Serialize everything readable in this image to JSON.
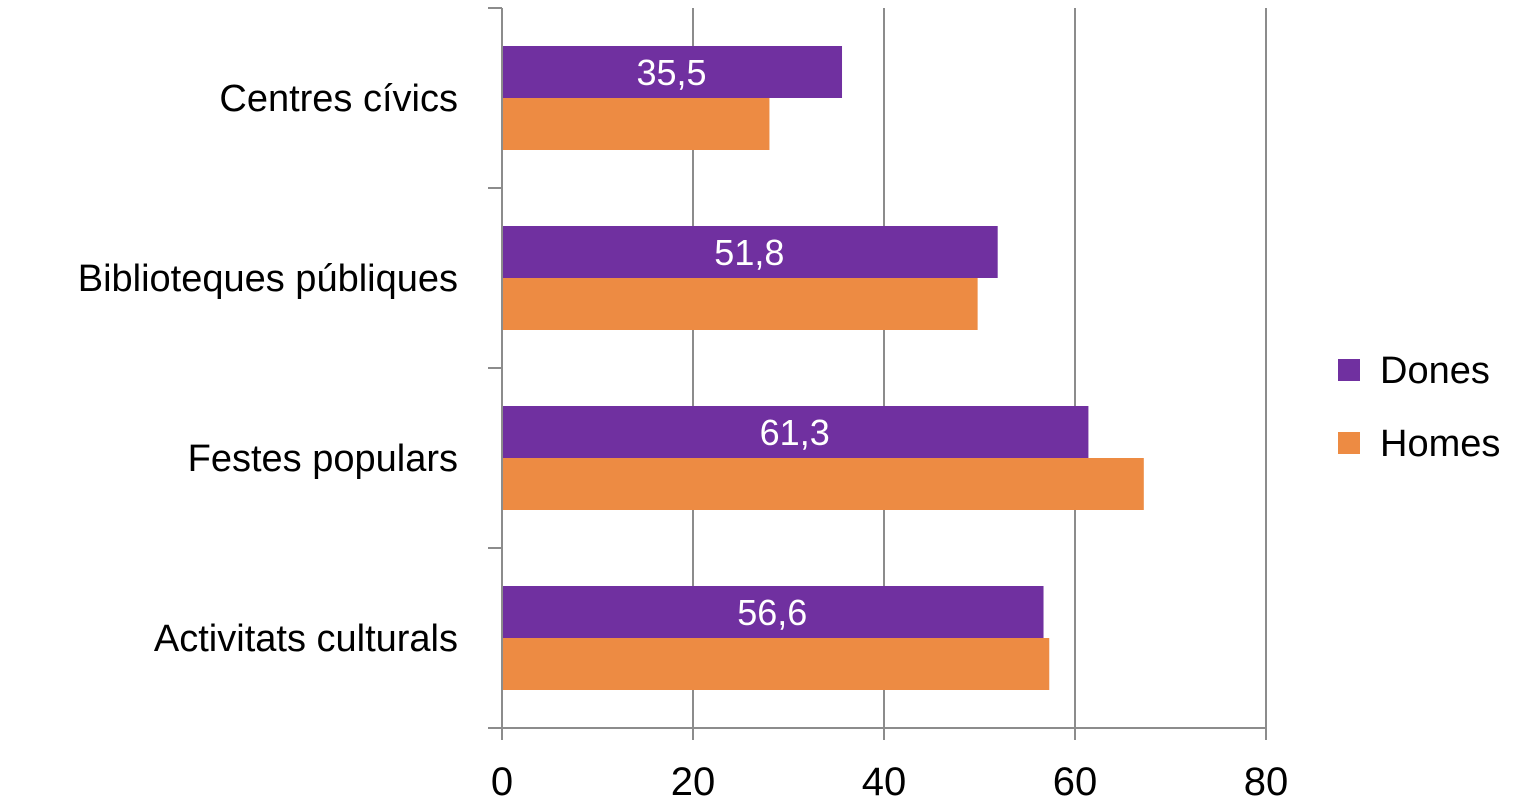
{
  "chart_data": {
    "type": "bar",
    "orientation": "horizontal",
    "categories": [
      "Centres cívics",
      "Biblioteques públiques",
      "Festes populars",
      "Activitats culturals"
    ],
    "series": [
      {
        "name": "Dones",
        "color": "#7030A0",
        "values": [
          35.5,
          51.8,
          61.3,
          56.6
        ],
        "data_labels": [
          "35,5",
          "51,8",
          "61,3",
          "56,6"
        ]
      },
      {
        "name": "Homes",
        "color": "#ED8B43",
        "values": [
          27.9,
          49.7,
          67.1,
          57.2
        ]
      }
    ],
    "xlim": [
      0,
      80
    ],
    "x_ticks": [
      "0",
      "20",
      "40",
      "60",
      "80"
    ],
    "grid": "vertical",
    "legend_position": "right"
  }
}
